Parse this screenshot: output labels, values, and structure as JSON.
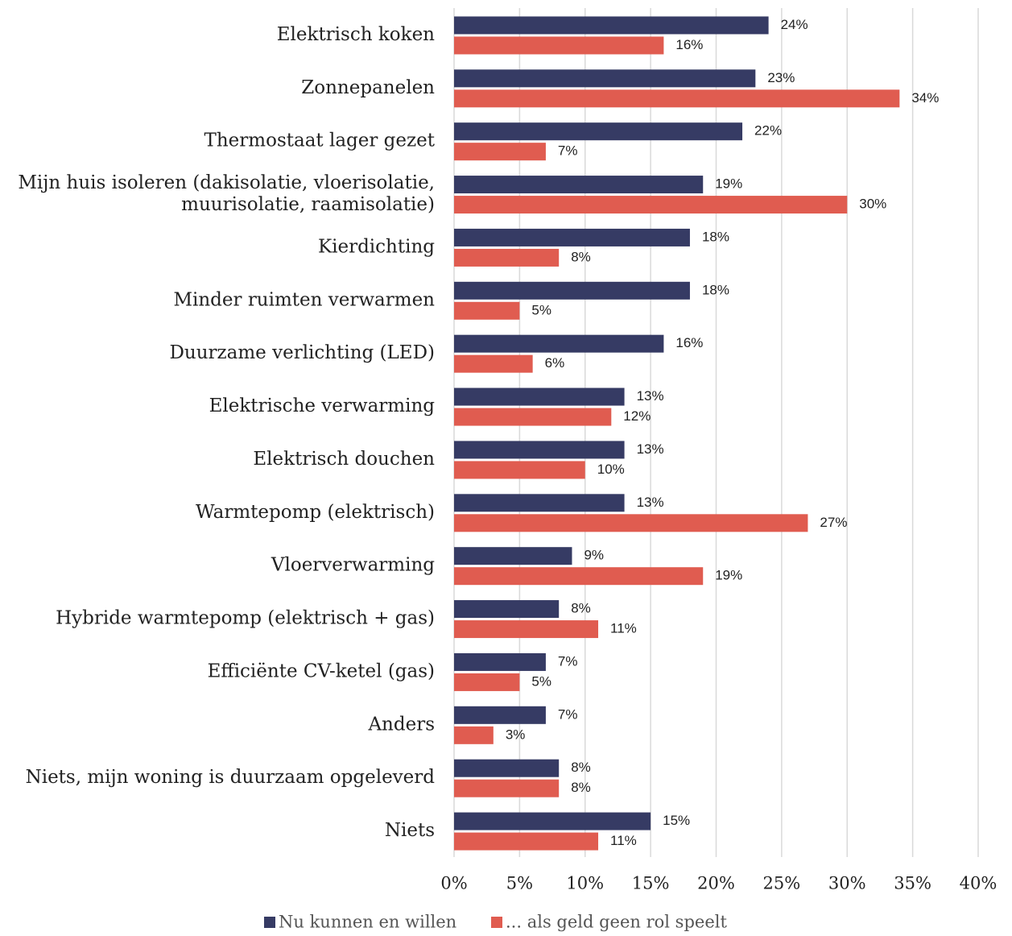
{
  "chart_data": {
    "type": "bar",
    "orientation": "horizontal",
    "categories": [
      "Elektrisch koken",
      "Zonnepanelen",
      "Thermostaat lager gezet",
      "Mijn huis isoleren (dakisolatie, vloerisolatie,\nmuurisolatie, raamisolatie)",
      "Kierdichting",
      "Minder ruimten verwarmen",
      "Duurzame verlichting (LED)",
      "Elektrische verwarming",
      "Elektrisch douchen",
      "Warmtepomp (elektrisch)",
      "Vloerverwarming",
      "Hybride warmtepomp (elektrisch + gas)",
      "Efficiënte CV-ketel (gas)",
      "Anders",
      "Niets, mijn woning is duurzaam opgeleverd",
      "Niets"
    ],
    "series": [
      {
        "name": "Nu kunnen en willen",
        "color": "#363b64",
        "values": [
          24,
          23,
          22,
          19,
          18,
          18,
          16,
          13,
          13,
          13,
          9,
          8,
          7,
          7,
          8,
          15
        ],
        "value_labels": [
          "24%",
          "23%",
          "22%",
          "19%",
          "18%",
          "18%",
          "16%",
          "13%",
          "13%",
          "13%",
          "9%",
          "8%",
          "7%",
          "7%",
          "8%",
          "15%"
        ]
      },
      {
        "name": "... als geld geen rol speelt",
        "color": "#e05c50",
        "values": [
          16,
          34,
          7,
          30,
          8,
          5,
          6,
          12,
          10,
          27,
          19,
          11,
          5,
          3,
          8,
          11
        ],
        "value_labels": [
          "16%",
          "34%",
          "7%",
          "30%",
          "8%",
          "5%",
          "6%",
          "12%",
          "10%",
          "27%",
          "19%",
          "11%",
          "5%",
          "3%",
          "8%",
          "11%"
        ]
      }
    ],
    "xlim": [
      0,
      40
    ],
    "xticks": [
      {
        "value": 0,
        "label": "0%"
      },
      {
        "value": 5,
        "label": "5%"
      },
      {
        "value": 10,
        "label": "10%"
      },
      {
        "value": 15,
        "label": "15%"
      },
      {
        "value": 20,
        "label": "20%"
      },
      {
        "value": 25,
        "label": "25%"
      },
      {
        "value": 30,
        "label": "30%"
      },
      {
        "value": 35,
        "label": "35%"
      },
      {
        "value": 40,
        "label": "40%"
      }
    ],
    "grid": true,
    "legend": "bottom"
  }
}
